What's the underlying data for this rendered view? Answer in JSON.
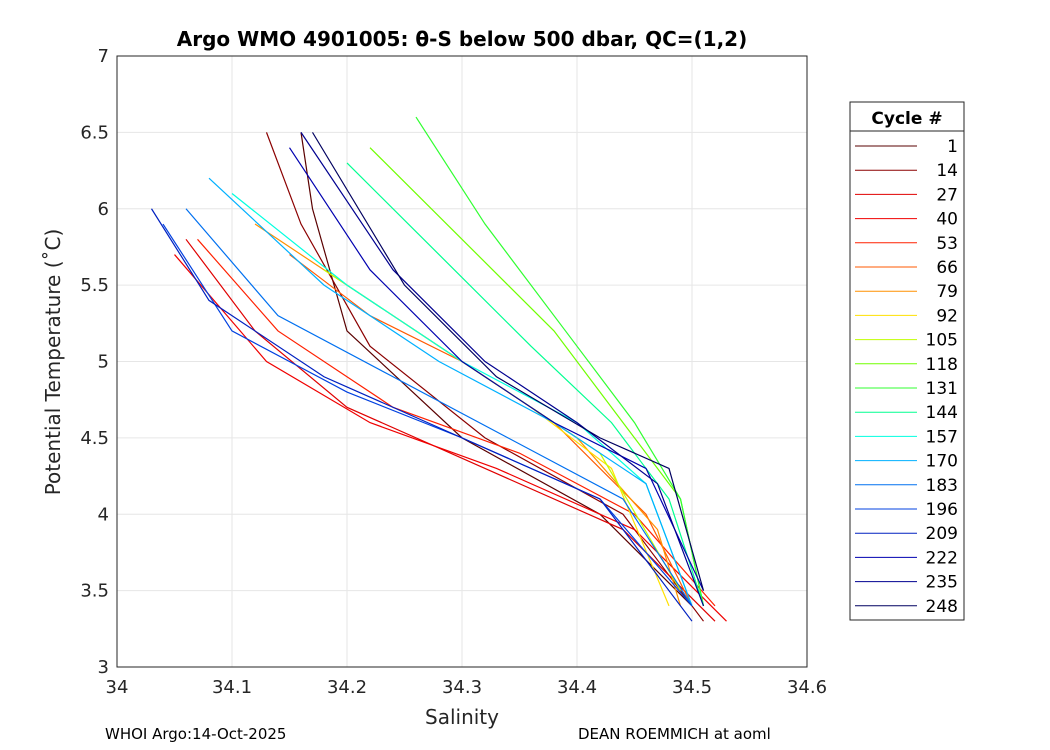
{
  "chart_data": {
    "type": "line",
    "title": "Argo WMO 4901005: θ-S below 500 dbar,  QC=(1,2)",
    "xlabel": "Salinity",
    "ylabel": "Potential Temperature (˚C)",
    "xlim": [
      34,
      34.6
    ],
    "ylim": [
      3,
      7
    ],
    "xticks": [
      "34",
      "34.1",
      "34.2",
      "34.3",
      "34.4",
      "34.5",
      "34.6"
    ],
    "yticks": [
      "3",
      "3.5",
      "4",
      "4.5",
      "5",
      "5.5",
      "6",
      "6.5",
      "7"
    ],
    "grid": true,
    "legend_title": "Cycle #",
    "legend_position": "right-outside",
    "series": [
      {
        "name": "1",
        "color": "#5a0000",
        "x": [
          34.16,
          34.17,
          34.2,
          34.3,
          34.42,
          34.5
        ],
        "y": [
          6.5,
          6.0,
          5.2,
          4.5,
          4.0,
          3.4
        ]
      },
      {
        "name": "14",
        "color": "#8b0000",
        "x": [
          34.13,
          34.16,
          34.22,
          34.32,
          34.44,
          34.51
        ],
        "y": [
          6.5,
          5.9,
          5.1,
          4.5,
          4.0,
          3.3
        ]
      },
      {
        "name": "27",
        "color": "#e00000",
        "x": [
          34.06,
          34.12,
          34.2,
          34.32,
          34.44,
          34.52
        ],
        "y": [
          5.8,
          5.2,
          4.7,
          4.3,
          3.9,
          3.3
        ]
      },
      {
        "name": "40",
        "color": "#f00000",
        "x": [
          34.05,
          34.13,
          34.22,
          34.33,
          34.45,
          34.53
        ],
        "y": [
          5.7,
          5.0,
          4.6,
          4.3,
          3.9,
          3.3
        ]
      },
      {
        "name": "53",
        "color": "#ff2000",
        "x": [
          34.07,
          34.14,
          34.24,
          34.35,
          34.45,
          34.52
        ],
        "y": [
          5.8,
          5.2,
          4.7,
          4.4,
          4.0,
          3.4
        ]
      },
      {
        "name": "66",
        "color": "#ff5a00",
        "x": [
          34.15,
          34.22,
          34.3,
          34.38,
          34.46,
          34.5
        ],
        "y": [
          5.7,
          5.3,
          5.0,
          4.6,
          4.0,
          3.4
        ]
      },
      {
        "name": "79",
        "color": "#ff9000",
        "x": [
          34.12,
          34.2,
          34.3,
          34.4,
          34.47,
          34.49
        ],
        "y": [
          5.9,
          5.5,
          5.0,
          4.5,
          3.9,
          3.4
        ]
      },
      {
        "name": "92",
        "color": "#ffe000",
        "x": [
          34.2,
          34.28,
          34.36,
          34.43,
          34.48
        ],
        "y": [
          5.5,
          5.1,
          4.7,
          4.3,
          3.4
        ]
      },
      {
        "name": "105",
        "color": "#c0ff00",
        "x": [
          34.18,
          34.26,
          34.34,
          34.42,
          34.49
        ],
        "y": [
          5.6,
          5.2,
          4.8,
          4.4,
          3.5
        ]
      },
      {
        "name": "118",
        "color": "#70ff00",
        "x": [
          34.22,
          34.3,
          34.38,
          34.44,
          34.49,
          34.51
        ],
        "y": [
          6.4,
          5.8,
          5.2,
          4.6,
          4.1,
          3.4
        ]
      },
      {
        "name": "131",
        "color": "#30ff30",
        "x": [
          34.26,
          34.32,
          34.39,
          34.45,
          34.49,
          34.51
        ],
        "y": [
          6.6,
          5.9,
          5.2,
          4.6,
          4.1,
          3.4
        ]
      },
      {
        "name": "144",
        "color": "#00ff90",
        "x": [
          34.2,
          34.28,
          34.36,
          34.43,
          34.48,
          34.51
        ],
        "y": [
          6.3,
          5.7,
          5.1,
          4.6,
          4.1,
          3.4
        ]
      },
      {
        "name": "157",
        "color": "#00ffe0",
        "x": [
          34.1,
          34.2,
          34.3,
          34.4,
          34.46,
          34.5
        ],
        "y": [
          6.1,
          5.5,
          5.0,
          4.6,
          4.2,
          3.4
        ]
      },
      {
        "name": "170",
        "color": "#00b0ff",
        "x": [
          34.08,
          34.18,
          34.28,
          34.38,
          34.46,
          34.5
        ],
        "y": [
          6.2,
          5.5,
          5.0,
          4.6,
          4.2,
          3.4
        ]
      },
      {
        "name": "183",
        "color": "#0070f0",
        "x": [
          34.06,
          34.14,
          34.24,
          34.34,
          34.44,
          34.5
        ],
        "y": [
          6.0,
          5.3,
          4.9,
          4.5,
          4.1,
          3.4
        ]
      },
      {
        "name": "196",
        "color": "#0040e0",
        "x": [
          34.04,
          34.1,
          34.2,
          34.3,
          34.42,
          34.5
        ],
        "y": [
          5.9,
          5.2,
          4.8,
          4.5,
          4.1,
          3.4
        ]
      },
      {
        "name": "209",
        "color": "#0020c0",
        "x": [
          34.03,
          34.08,
          34.18,
          34.3,
          34.42,
          34.5
        ],
        "y": [
          6.0,
          5.4,
          4.9,
          4.5,
          4.1,
          3.3
        ]
      },
      {
        "name": "222",
        "color": "#0000b0",
        "x": [
          34.15,
          34.22,
          34.3,
          34.38,
          34.46,
          34.51
        ],
        "y": [
          6.4,
          5.6,
          5.0,
          4.6,
          4.3,
          3.5
        ]
      },
      {
        "name": "235",
        "color": "#000090",
        "x": [
          34.16,
          34.24,
          34.32,
          34.4,
          34.47,
          34.51
        ],
        "y": [
          6.5,
          5.6,
          5.0,
          4.6,
          4.2,
          3.4
        ]
      },
      {
        "name": "248",
        "color": "#000060",
        "x": [
          34.17,
          34.25,
          34.33,
          34.42,
          34.48,
          34.51
        ],
        "y": [
          6.5,
          5.5,
          4.9,
          4.5,
          4.3,
          3.5
        ]
      }
    ]
  },
  "footer": {
    "left": "WHOI Argo:14-Oct-2025",
    "right": "DEAN ROEMMICH at aoml"
  }
}
